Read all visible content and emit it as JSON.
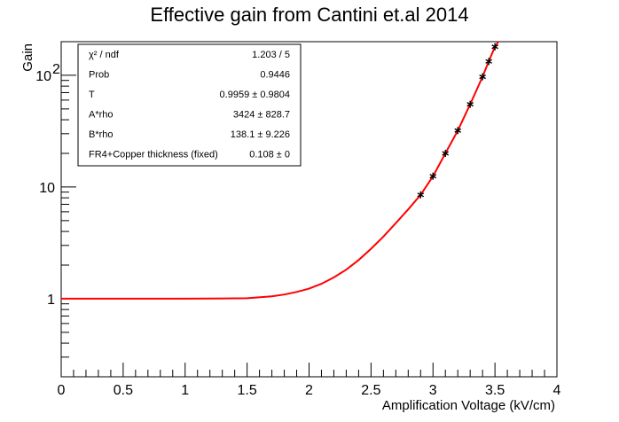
{
  "chart_data": {
    "type": "scatter",
    "title": "Effective gain from Cantini et.al 2014",
    "xlabel": "Amplification Voltage (kV/cm)",
    "ylabel": "Gain",
    "xlim": [
      0,
      4
    ],
    "ylim": [
      0.2,
      200
    ],
    "yscale": "log",
    "grid": false,
    "x_ticks": [
      {
        "value": 0,
        "label": "0"
      },
      {
        "value": 0.5,
        "label": "0.5"
      },
      {
        "value": 1,
        "label": "1"
      },
      {
        "value": 1.5,
        "label": "1.5"
      },
      {
        "value": 2,
        "label": "2"
      },
      {
        "value": 2.5,
        "label": "2.5"
      },
      {
        "value": 3,
        "label": "3"
      },
      {
        "value": 3.5,
        "label": "3.5"
      },
      {
        "value": 4,
        "label": "4"
      }
    ],
    "y_ticks": [
      {
        "value": 1,
        "label": "1"
      },
      {
        "value": 10,
        "label": "10"
      },
      {
        "value": 100,
        "label": "10",
        "exp": "2"
      }
    ],
    "series": [
      {
        "marker": "star",
        "color": "#000000",
        "x": [
          2.9,
          3.0,
          3.1,
          3.2,
          3.3,
          3.4,
          3.45,
          3.5
        ],
        "y": [
          8.5,
          12.5,
          20,
          32,
          55,
          97,
          133,
          180
        ]
      }
    ],
    "fit": {
      "color": "#ff0000",
      "x_range": [
        0,
        3.54
      ],
      "curve": [
        [
          0,
          1.0
        ],
        [
          1.0,
          1.0
        ],
        [
          1.5,
          1.01
        ],
        [
          1.7,
          1.05
        ],
        [
          1.8,
          1.09
        ],
        [
          1.9,
          1.15
        ],
        [
          2.0,
          1.23
        ],
        [
          2.1,
          1.36
        ],
        [
          2.2,
          1.55
        ],
        [
          2.3,
          1.82
        ],
        [
          2.4,
          2.22
        ],
        [
          2.5,
          2.8
        ],
        [
          2.6,
          3.6
        ],
        [
          2.7,
          4.75
        ],
        [
          2.8,
          6.3
        ],
        [
          2.9,
          8.5
        ],
        [
          3.0,
          12.5
        ],
        [
          3.1,
          20
        ],
        [
          3.2,
          32
        ],
        [
          3.3,
          55
        ],
        [
          3.4,
          97
        ],
        [
          3.45,
          133
        ],
        [
          3.5,
          180
        ],
        [
          3.54,
          210
        ]
      ]
    },
    "stats": [
      {
        "label": "χ² / ndf",
        "value": "1.203 / 5"
      },
      {
        "label": "Prob",
        "value": "0.9446"
      },
      {
        "label": "T",
        "value": "0.9959 ± 0.9804"
      },
      {
        "label": "A*rho",
        "value": "3424 ± 828.7"
      },
      {
        "label": "B*rho",
        "value": "138.1 ± 9.226"
      },
      {
        "label": "FR4+Copper thickness (fixed)",
        "value": "0.108 ±     0"
      }
    ]
  }
}
